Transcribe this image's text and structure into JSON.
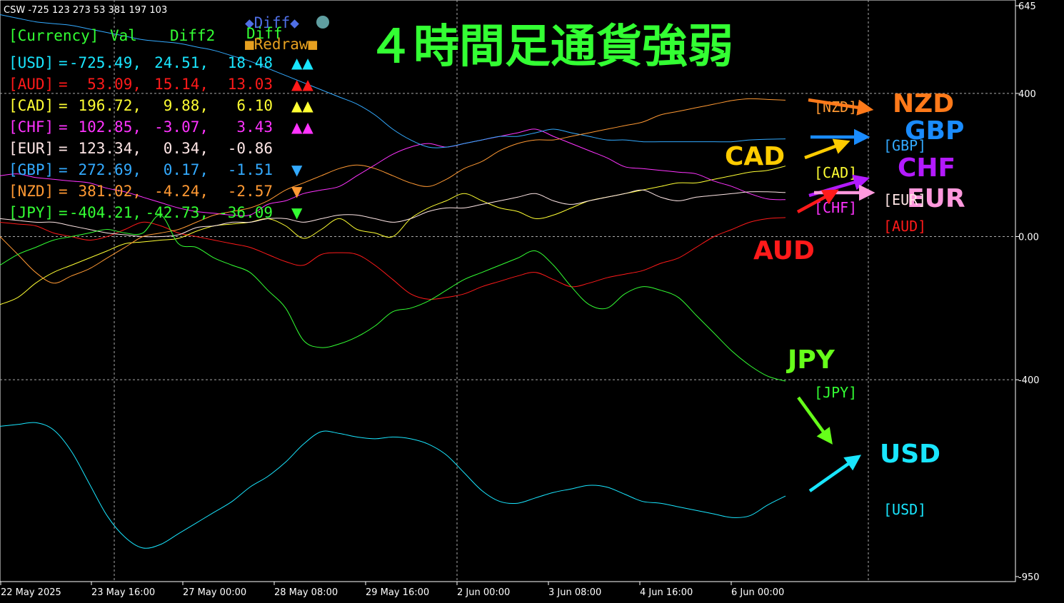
{
  "window": {
    "indicator_label": "CSW -725 123 273 53 381 197 103",
    "title": "４時間足通貨強弱"
  },
  "controls": {
    "diff_label": "◆Diff◆",
    "diff2_label": "Diff",
    "redraw_label": "■Redraw■",
    "circle_color": "#5f9ea0"
  },
  "table": {
    "headers": [
      "[Currency]",
      "Val",
      "Diff2",
      "Diff"
    ],
    "rows": [
      {
        "currency": "[USD]",
        "eq": "=",
        "val": "-725.49,",
        "diff2": "24.51,",
        "diff": "18.48",
        "arrows": "▲▲",
        "color": "#19e6ff"
      },
      {
        "currency": "[AUD]",
        "eq": "=",
        "val": "53.09,",
        "diff2": "15.14,",
        "diff": "13.03",
        "arrows": "▲▲",
        "color": "#ff1a1a"
      },
      {
        "currency": "[CAD]",
        "eq": "=",
        "val": "196.72,",
        "diff2": "9.88,",
        "diff": "6.10",
        "arrows": "▲▲",
        "color": "#ffff33"
      },
      {
        "currency": "[CHF]",
        "eq": "=",
        "val": "102.85,",
        "diff2": "-3.07,",
        "diff": "3.43",
        "arrows": "▲▲",
        "color": "#ff33ff"
      },
      {
        "currency": "[EUR]",
        "eq": "=",
        "val": "123.34,",
        "diff2": "0.34,",
        "diff": "-0.86",
        "arrows": "",
        "color": "#ffe6e6"
      },
      {
        "currency": "[GBP]",
        "eq": "=",
        "val": "272.69,",
        "diff2": "0.17,",
        "diff": "-1.51",
        "arrows": "▼",
        "color": "#33aaff"
      },
      {
        "currency": "[NZD]",
        "eq": "=",
        "val": "381.02,",
        "diff2": "-4.24,",
        "diff": "-2.57",
        "arrows": "▼",
        "color": "#ff9933"
      },
      {
        "currency": "[JPY]",
        "eq": "=",
        "val": "-404.21,",
        "diff2": "-42.73,",
        "diff": "-36.09",
        "arrows": "▼",
        "color": "#33ff33"
      }
    ]
  },
  "chart_data": {
    "type": "line",
    "ylim": [
      -950,
      645
    ],
    "y_ticks": [
      "645",
      "400",
      "0.00",
      "-400",
      "-950"
    ],
    "x_tick_labels": [
      "22 May 2025",
      "23 May 16:00",
      "27 May 00:00",
      "28 May 08:00",
      "29 May 16:00",
      "2 Jun 00:00",
      "3 Jun 08:00",
      "4 Jun 16:00",
      "6 Jun 00:00"
    ],
    "grid": true,
    "series": [
      {
        "name": "USD",
        "color": "#19e6ff",
        "values": [
          -530,
          -525,
          -520,
          -540,
          -600,
          -690,
          -780,
          -840,
          -870,
          -860,
          -830,
          -800,
          -770,
          -740,
          -700,
          -670,
          -630,
          -580,
          -545,
          -550,
          -560,
          -565,
          -560,
          -565,
          -580,
          -610,
          -660,
          -710,
          -740,
          -745,
          -730,
          -715,
          -705,
          -695,
          -700,
          -720,
          -740,
          -745,
          -755,
          -765,
          -775,
          -785,
          -780,
          -750,
          -725
        ]
      },
      {
        "name": "AUD",
        "color": "#ff1a1a",
        "values": [
          40,
          35,
          30,
          10,
          0,
          -10,
          0,
          20,
          40,
          30,
          10,
          0,
          -10,
          -20,
          -30,
          -50,
          -70,
          -80,
          -50,
          -45,
          -50,
          -80,
          -120,
          -160,
          -175,
          -170,
          -160,
          -140,
          -125,
          -110,
          -100,
          -120,
          -140,
          -130,
          -115,
          -105,
          -95,
          -75,
          -60,
          -30,
          0,
          20,
          40,
          50,
          53
        ]
      },
      {
        "name": "CAD",
        "color": "#ffff33",
        "values": [
          -190,
          -170,
          -130,
          -100,
          -80,
          -60,
          -40,
          -20,
          -15,
          -10,
          -5,
          15,
          30,
          35,
          40,
          50,
          30,
          -5,
          20,
          50,
          20,
          10,
          0,
          50,
          80,
          100,
          120,
          100,
          80,
          70,
          50,
          60,
          80,
          100,
          110,
          120,
          130,
          140,
          150,
          150,
          160,
          170,
          180,
          185,
          197
        ]
      },
      {
        "name": "CHF",
        "color": "#ff33ff",
        "values": [
          170,
          175,
          165,
          160,
          155,
          150,
          135,
          125,
          110,
          95,
          80,
          70,
          65,
          60,
          60,
          90,
          100,
          120,
          130,
          140,
          170,
          200,
          230,
          250,
          260,
          250,
          260,
          270,
          280,
          290,
          300,
          280,
          260,
          240,
          220,
          195,
          190,
          185,
          180,
          175,
          155,
          140,
          120,
          105,
          103
        ]
      },
      {
        "name": "EUR",
        "color": "#ffe6e6",
        "values": [
          50,
          45,
          40,
          40,
          30,
          20,
          10,
          5,
          0,
          0,
          5,
          25,
          30,
          40,
          40,
          50,
          50,
          40,
          50,
          60,
          60,
          50,
          40,
          50,
          70,
          80,
          80,
          90,
          100,
          110,
          120,
          100,
          90,
          100,
          110,
          120,
          130,
          110,
          100,
          110,
          115,
          120,
          125,
          125,
          123
        ]
      },
      {
        "name": "GBP",
        "color": "#33aaff",
        "values": [
          620,
          610,
          600,
          595,
          590,
          580,
          570,
          560,
          550,
          545,
          540,
          530,
          520,
          505,
          490,
          470,
          450,
          430,
          410,
          390,
          370,
          340,
          300,
          270,
          250,
          250,
          260,
          270,
          280,
          280,
          290,
          300,
          290,
          280,
          270,
          270,
          265,
          265,
          265,
          265,
          265,
          265,
          270,
          272,
          273
        ]
      },
      {
        "name": "NZD",
        "color": "#ff9933",
        "values": [
          0,
          -50,
          -100,
          -130,
          -110,
          -90,
          -60,
          -30,
          0,
          10,
          20,
          40,
          60,
          70,
          80,
          100,
          130,
          150,
          170,
          190,
          200,
          190,
          170,
          150,
          140,
          160,
          190,
          210,
          240,
          260,
          270,
          270,
          280,
          290,
          300,
          310,
          320,
          340,
          350,
          360,
          370,
          380,
          385,
          383,
          381
        ]
      },
      {
        "name": "JPY",
        "color": "#33ff33",
        "values": [
          -80,
          -50,
          -30,
          -10,
          0,
          10,
          20,
          10,
          10,
          60,
          -20,
          -30,
          -60,
          -80,
          -100,
          -150,
          -200,
          -290,
          -310,
          -300,
          -280,
          -250,
          -210,
          -200,
          -180,
          -150,
          -120,
          -100,
          -80,
          -60,
          -40,
          -80,
          -140,
          -190,
          -200,
          -160,
          -140,
          -150,
          -170,
          -220,
          -270,
          -320,
          -360,
          -390,
          -404
        ]
      }
    ]
  },
  "annotations": {
    "big_labels": [
      {
        "text": "NZD",
        "color": "#ff7a1a"
      },
      {
        "text": "GBP",
        "color": "#1a8cff"
      },
      {
        "text": "CAD",
        "color": "#ffcc00"
      },
      {
        "text": "CHF",
        "color": "#b31aff"
      },
      {
        "text": "EUR",
        "color": "#ff99dd"
      },
      {
        "text": "AUD",
        "color": "#ff1a1a"
      },
      {
        "text": "JPY",
        "color": "#66ff1a"
      },
      {
        "text": "USD",
        "color": "#19e6ff"
      }
    ],
    "tags": [
      {
        "text": "[NZD]",
        "color": "#ff9933"
      },
      {
        "text": "[GBP]",
        "color": "#33aaff"
      },
      {
        "text": "[CAD]",
        "color": "#ffff33"
      },
      {
        "text": "[EUR]",
        "color": "#ffe6e6"
      },
      {
        "text": "[CHF]",
        "color": "#ff33ff"
      },
      {
        "text": "[AUD]",
        "color": "#ff1a1a"
      },
      {
        "text": "[JPY]",
        "color": "#33ff33"
      },
      {
        "text": "[USD]",
        "color": "#19e6ff"
      }
    ],
    "arrow_colors": [
      "#ff7a1a",
      "#1a8cff",
      "#ffcc00",
      "#b31aff",
      "#ff99dd",
      "#ff1a1a",
      "#66ff1a",
      "#19e6ff"
    ]
  }
}
